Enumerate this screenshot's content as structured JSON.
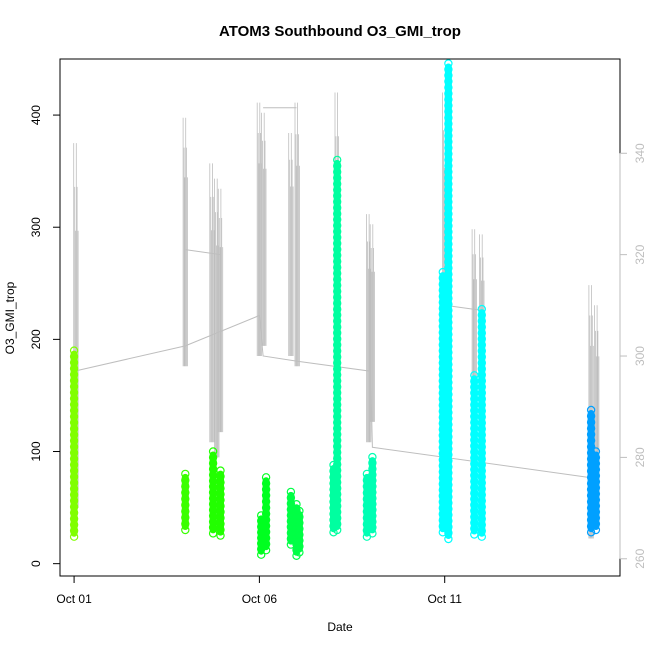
{
  "chart_data": {
    "type": "scatter",
    "title": "ATOM3 Southbound O3_GMI_trop",
    "xlabel": "Date",
    "ylabel": "O3_GMI_trop",
    "x_unit": "day of October 2017",
    "xlim": [
      0.62,
      15.73
    ],
    "ylim": [
      -11,
      450
    ],
    "x_ticks": [
      1,
      6,
      11
    ],
    "x_tick_labels": [
      "Oct 01",
      "Oct 06",
      "Oct 11"
    ],
    "y_ticks": [
      0,
      100,
      200,
      300,
      400
    ],
    "y2_lim": [
      256.6,
      358.6
    ],
    "y2_ticks": [
      260,
      280,
      300,
      320,
      340
    ],
    "y2_color": "#bebebe",
    "grid": false,
    "o3_groups": [
      {
        "x": 1.0,
        "ymin": 24,
        "ymax": 190,
        "color": "#80ff00"
      },
      {
        "x": 4.0,
        "ymin": 30,
        "ymax": 80,
        "color": "#3aff00"
      },
      {
        "x": 4.75,
        "ymin": 27,
        "ymax": 100,
        "color": "#22ff00"
      },
      {
        "x": 4.95,
        "ymin": 25,
        "ymax": 83,
        "color": "#22ff00"
      },
      {
        "x": 6.05,
        "ymin": 8,
        "ymax": 43,
        "color": "#00ff20"
      },
      {
        "x": 6.18,
        "ymin": 12,
        "ymax": 77,
        "color": "#00ff20"
      },
      {
        "x": 6.85,
        "ymin": 17,
        "ymax": 64,
        "color": "#00ff45"
      },
      {
        "x": 7.0,
        "ymin": 7,
        "ymax": 53,
        "color": "#00ff45"
      },
      {
        "x": 7.08,
        "ymin": 10,
        "ymax": 47,
        "color": "#00ff45"
      },
      {
        "x": 8.0,
        "ymin": 28,
        "ymax": 88,
        "color": "#00ffa0"
      },
      {
        "x": 8.1,
        "ymin": 30,
        "ymax": 360,
        "color": "#00ffa0"
      },
      {
        "x": 8.9,
        "ymin": 24,
        "ymax": 80,
        "color": "#00ffb4"
      },
      {
        "x": 9.05,
        "ymin": 27,
        "ymax": 95,
        "color": "#00ffb4"
      },
      {
        "x": 10.95,
        "ymin": 28,
        "ymax": 260,
        "color": "#00ffff"
      },
      {
        "x": 11.1,
        "ymin": 22,
        "ymax": 446,
        "color": "#00ffff"
      },
      {
        "x": 11.8,
        "ymin": 26,
        "ymax": 168,
        "color": "#00ffff"
      },
      {
        "x": 12.0,
        "ymin": 24,
        "ymax": 227,
        "color": "#00ffff"
      },
      {
        "x": 14.95,
        "ymin": 28,
        "ymax": 137,
        "color": "#00a0ff"
      },
      {
        "x": 15.08,
        "ymin": 30,
        "ymax": 100,
        "color": "#00a0ff"
      }
    ],
    "pressure_spikes": [
      {
        "x": 1.05,
        "ymin": 270,
        "ymax": 342
      },
      {
        "x": 4.0,
        "ymin": 298,
        "ymax": 347
      },
      {
        "x": 4.72,
        "ymin": 283,
        "ymax": 338
      },
      {
        "x": 4.85,
        "ymin": 280,
        "ymax": 335
      },
      {
        "x": 4.95,
        "ymin": 285,
        "ymax": 333
      },
      {
        "x": 6.0,
        "ymin": 300,
        "ymax": 350
      },
      {
        "x": 6.12,
        "ymin": 302,
        "ymax": 348
      },
      {
        "x": 6.85,
        "ymin": 300,
        "ymax": 344
      },
      {
        "x": 7.02,
        "ymin": 298,
        "ymax": 350
      },
      {
        "x": 8.1,
        "ymin": 280,
        "ymax": 352
      },
      {
        "x": 8.95,
        "ymin": 283,
        "ymax": 328
      },
      {
        "x": 9.05,
        "ymin": 287,
        "ymax": 326
      },
      {
        "x": 11.0,
        "ymin": 290,
        "ymax": 352
      },
      {
        "x": 11.8,
        "ymin": 284,
        "ymax": 325
      },
      {
        "x": 12.0,
        "ymin": 286,
        "ymax": 324
      },
      {
        "x": 14.95,
        "ymin": 264,
        "ymax": 314
      },
      {
        "x": 15.1,
        "ymin": 268,
        "ymax": 310
      }
    ],
    "pressure_path": [
      [
        1.0,
        297
      ],
      [
        4.0,
        302
      ],
      [
        6.0,
        308
      ],
      [
        6.1,
        300
      ],
      [
        7.0,
        299
      ],
      [
        9.0,
        297
      ],
      [
        9.05,
        282
      ],
      [
        14.95,
        276
      ]
    ],
    "pressure_path_2": [
      [
        4.0,
        321
      ],
      [
        4.95,
        320
      ]
    ],
    "pressure_path_3": [
      [
        6.1,
        349
      ],
      [
        7.0,
        349
      ]
    ],
    "pressure_path_4": [
      [
        11.0,
        310
      ],
      [
        12.0,
        309
      ]
    ]
  }
}
